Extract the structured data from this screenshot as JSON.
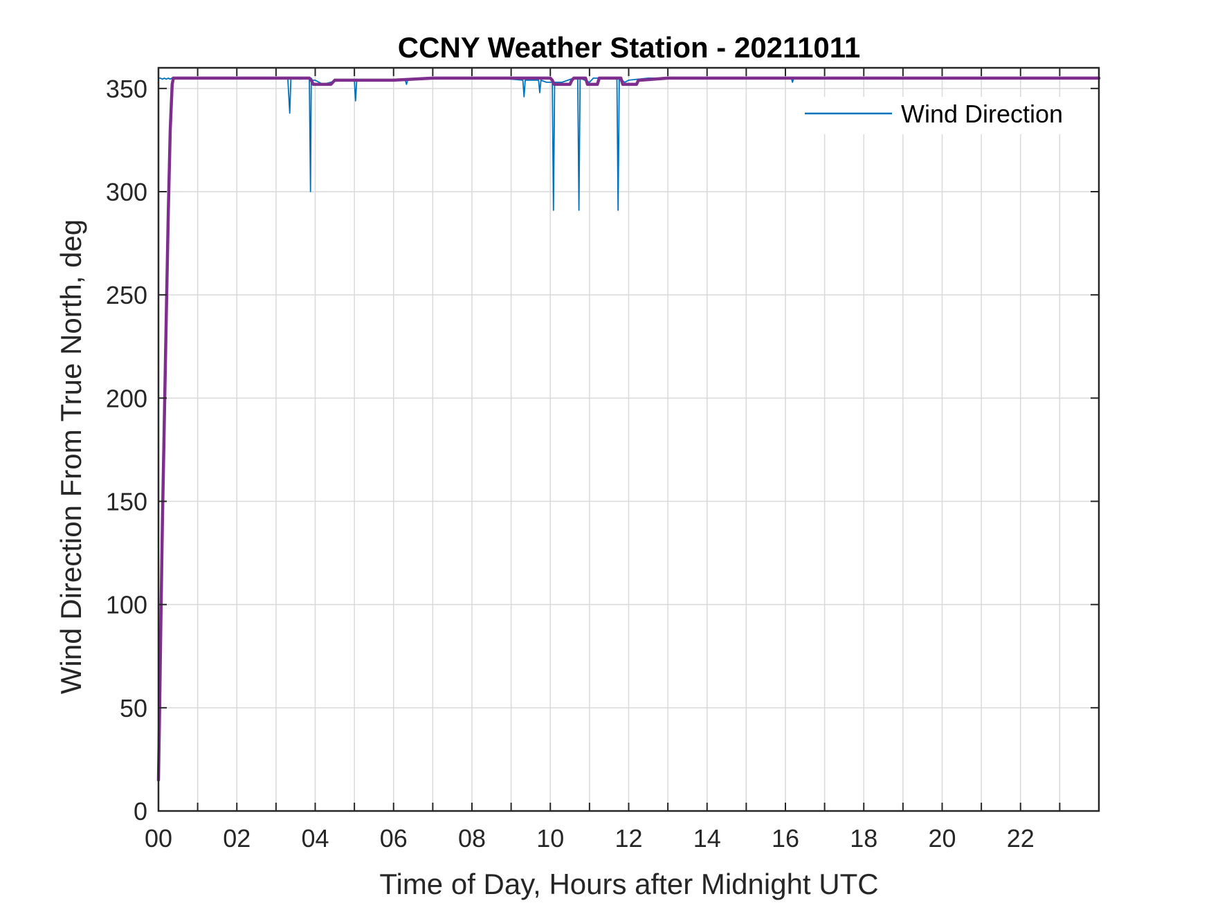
{
  "chart_data": {
    "type": "line",
    "title": "CCNY Weather Station - 20211011",
    "xlabel": "Time of Day, Hours after Midnight UTC",
    "ylabel": "Wind Direction From True North, deg",
    "xlim": [
      0,
      24
    ],
    "ylim": [
      0,
      360
    ],
    "x_ticks": [
      "00",
      "02",
      "04",
      "06",
      "08",
      "10",
      "12",
      "14",
      "16",
      "18",
      "20",
      "22"
    ],
    "x_tick_values": [
      0,
      2,
      4,
      6,
      8,
      10,
      12,
      14,
      16,
      18,
      20,
      22
    ],
    "y_ticks": [
      0,
      50,
      100,
      150,
      200,
      250,
      300,
      350
    ],
    "grid": true,
    "legend": {
      "placement": "top-right",
      "entries": [
        "Wind Direction"
      ]
    },
    "series": [
      {
        "name": "Wind Direction",
        "color": "#0072BD",
        "x": [
          0.0,
          0.02,
          0.05,
          0.1,
          0.15,
          0.2,
          0.25,
          0.3,
          0.34,
          0.38,
          0.4,
          0.6,
          1.0,
          1.5,
          2.0,
          2.5,
          3.0,
          3.3,
          3.35,
          3.38,
          3.41,
          3.6,
          3.85,
          3.88,
          3.9,
          3.93,
          4.0,
          4.2,
          4.5,
          5.0,
          5.03,
          5.06,
          5.2,
          5.5,
          6.0,
          6.3,
          6.33,
          6.36,
          6.5,
          7.0,
          7.5,
          8.0,
          8.5,
          9.0,
          9.3,
          9.33,
          9.36,
          9.5,
          9.7,
          9.73,
          9.76,
          9.9,
          10.05,
          10.08,
          10.11,
          10.3,
          10.6,
          10.7,
          10.73,
          10.76,
          11.0,
          11.1,
          11.3,
          11.6,
          11.7,
          11.73,
          11.76,
          11.9,
          12.0,
          12.5,
          13.0,
          13.5,
          14.0,
          14.5,
          15.0,
          15.5,
          16.0,
          16.15,
          16.18,
          16.21,
          16.5,
          17.0,
          17.5,
          18.0,
          18.5,
          19.0,
          19.5,
          20.0,
          20.5,
          21.0,
          21.5,
          22.0,
          22.5,
          23.0,
          23.5,
          24.0
        ],
        "y": [
          355,
          355,
          355,
          354.5,
          355,
          354.5,
          355,
          354.5,
          355,
          355,
          355,
          355,
          355,
          355,
          355,
          355,
          355,
          355,
          338,
          355,
          355,
          354.5,
          355,
          300,
          355,
          354,
          354,
          352,
          353.5,
          354,
          344,
          354,
          354,
          354,
          354,
          354,
          352,
          354,
          354.5,
          355,
          355,
          355,
          355,
          354.5,
          354,
          346,
          354,
          354,
          354,
          348,
          354,
          353,
          353,
          291,
          353,
          353,
          355,
          355,
          291,
          355,
          353,
          355,
          355,
          355,
          355,
          291,
          355,
          353,
          354,
          355,
          355,
          355,
          355,
          355,
          355,
          355,
          355,
          355,
          353,
          355,
          355,
          355,
          355,
          355,
          355,
          355,
          355,
          355,
          355,
          355,
          355,
          355,
          355,
          355,
          355,
          355
        ]
      },
      {
        "color": "#7E2F8E",
        "x": [
          0.0,
          0.03,
          0.06,
          0.1,
          0.15,
          0.2,
          0.25,
          0.3,
          0.35,
          0.38,
          0.42,
          1.0,
          2.0,
          3.0,
          3.85,
          3.9,
          3.95,
          4.4,
          4.5,
          4.6,
          5.0,
          6.0,
          7.0,
          8.0,
          9.0,
          10.0,
          10.05,
          10.1,
          10.5,
          10.55,
          10.6,
          10.9,
          10.95,
          11.2,
          11.25,
          11.3,
          11.8,
          11.85,
          12.2,
          12.25,
          12.3,
          13.0,
          14.0,
          15.0,
          16.0,
          17.0,
          18.0,
          19.0,
          20.0,
          21.0,
          22.0,
          23.0,
          24.0
        ],
        "y": [
          15,
          50,
          90,
          140,
          190,
          240,
          290,
          330,
          352,
          355,
          355,
          355,
          355,
          355,
          355,
          354,
          352,
          352,
          354,
          354,
          354,
          354,
          355,
          355,
          355,
          355,
          354,
          352,
          352,
          354,
          355,
          355,
          352,
          352,
          355,
          355,
          355,
          352,
          352,
          354,
          354,
          355,
          355,
          355,
          355,
          355,
          355,
          355,
          355,
          355,
          355,
          355,
          355
        ]
      }
    ]
  }
}
